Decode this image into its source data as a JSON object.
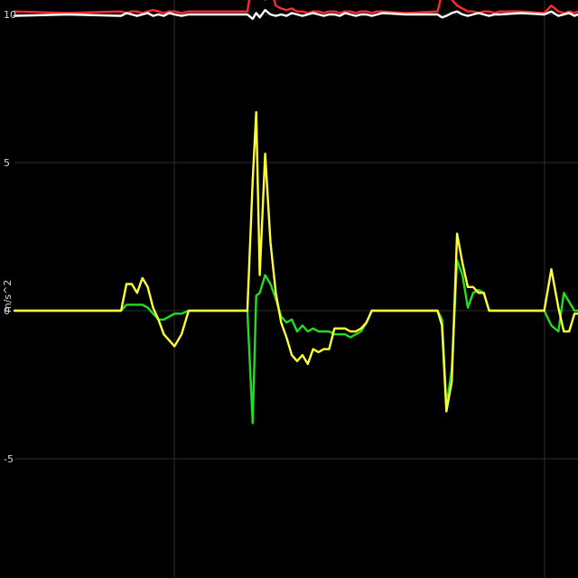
{
  "chart_data": {
    "type": "line",
    "ylabel": "m/s^2",
    "ylim": [
      -9,
      10.5
    ],
    "yticks": [
      10,
      5,
      0,
      -5
    ],
    "ytick_labels": [
      "10",
      "5",
      "0",
      "-5"
    ],
    "grid": true,
    "x": [
      0,
      60,
      120,
      126,
      132,
      138,
      144,
      150,
      156,
      162,
      168,
      174,
      180,
      188,
      196,
      201,
      230,
      262,
      268,
      272,
      276,
      282,
      288,
      294,
      300,
      306,
      312,
      318,
      324,
      330,
      336,
      342,
      348,
      354,
      360,
      366,
      372,
      378,
      384,
      390,
      396,
      402,
      408,
      414,
      440,
      476,
      481,
      486,
      492,
      498,
      504,
      510,
      516,
      522,
      528,
      534,
      540,
      546,
      570,
      596,
      604,
      612,
      618,
      624,
      630,
      634
    ],
    "series": [
      {
        "color": "#ffff33",
        "values": [
          0,
          0,
          0,
          0.9,
          0.9,
          0.6,
          1.1,
          0.8,
          0.1,
          -0.3,
          -0.8,
          -1.0,
          -1.2,
          -0.8,
          0,
          0,
          0,
          0,
          4.4,
          6.7,
          1.2,
          5.3,
          2.3,
          0.6,
          -0.4,
          -0.9,
          -1.5,
          -1.7,
          -1.5,
          -1.8,
          -1.3,
          -1.4,
          -1.3,
          -1.3,
          -0.6,
          -0.6,
          -0.6,
          -0.7,
          -0.7,
          -0.6,
          -0.4,
          0,
          0,
          0,
          0,
          0,
          -0.5,
          -3.4,
          -2.4,
          2.6,
          1.6,
          0.8,
          0.8,
          0.6,
          0.6,
          0,
          0,
          0,
          0,
          0,
          1.4,
          0.1,
          -0.7,
          -0.7,
          -0.1,
          -0.1
        ]
      },
      {
        "color": "#22dd22",
        "values": [
          0,
          0,
          0,
          0.2,
          0.2,
          0.2,
          0.2,
          0.1,
          -0.1,
          -0.3,
          -0.3,
          -0.2,
          -0.1,
          -0.1,
          0,
          0,
          0,
          0,
          -3.8,
          0.5,
          0.6,
          1.2,
          0.9,
          0.4,
          -0.2,
          -0.4,
          -0.3,
          -0.7,
          -0.5,
          -0.7,
          -0.6,
          -0.7,
          -0.7,
          -0.7,
          -0.8,
          -0.8,
          -0.8,
          -0.9,
          -0.8,
          -0.7,
          -0.4,
          0,
          0,
          0,
          0,
          0,
          -0.3,
          -3.2,
          -2.0,
          1.7,
          1.2,
          0.1,
          0.6,
          0.7,
          0.6,
          0,
          0,
          0,
          0,
          0,
          -0.5,
          -0.7,
          0.6,
          0.3,
          0,
          0
        ]
      },
      {
        "color": "#ff2a2a",
        "values": [
          10.1,
          10.05,
          10.1,
          10.05,
          10.1,
          10.1,
          10.05,
          10.1,
          10.15,
          10.1,
          10.05,
          10.1,
          10.1,
          10.05,
          10.1,
          10.1,
          10.1,
          10.1,
          11.2,
          10.6,
          11.1,
          10.5,
          10.9,
          10.3,
          10.2,
          10.15,
          10.2,
          10.1,
          10.1,
          10.05,
          10.1,
          10.1,
          10.05,
          10.1,
          10.1,
          10.05,
          10.1,
          10.1,
          10.05,
          10.1,
          10.1,
          10.05,
          10.1,
          10.1,
          10.05,
          10.1,
          10.7,
          10.9,
          10.5,
          10.3,
          10.2,
          10.1,
          10.1,
          10.05,
          10.1,
          10.1,
          10.05,
          10.1,
          10.1,
          10.05,
          10.3,
          10.1,
          10.05,
          10.1,
          10.05,
          10.1
        ]
      },
      {
        "color": "#ffffff",
        "values": [
          9.95,
          10.0,
          9.95,
          10.05,
          10.0,
          9.95,
          10.0,
          10.05,
          9.95,
          10.0,
          9.95,
          10.05,
          10.0,
          9.95,
          10.0,
          10.0,
          10.0,
          10.0,
          9.85,
          10.05,
          9.9,
          10.15,
          10.0,
          9.95,
          10.0,
          9.95,
          10.05,
          10.0,
          9.95,
          10.0,
          10.05,
          10.0,
          9.95,
          10.0,
          10.0,
          9.95,
          10.05,
          10.0,
          9.95,
          10.0,
          10.0,
          9.95,
          10.0,
          10.05,
          10.0,
          10.0,
          9.9,
          9.95,
          10.05,
          10.1,
          10.0,
          9.95,
          10.0,
          10.05,
          10.0,
          9.95,
          10.0,
          10.0,
          10.05,
          10.0,
          10.1,
          9.95,
          10.0,
          10.05,
          9.95,
          10.0
        ]
      }
    ]
  }
}
